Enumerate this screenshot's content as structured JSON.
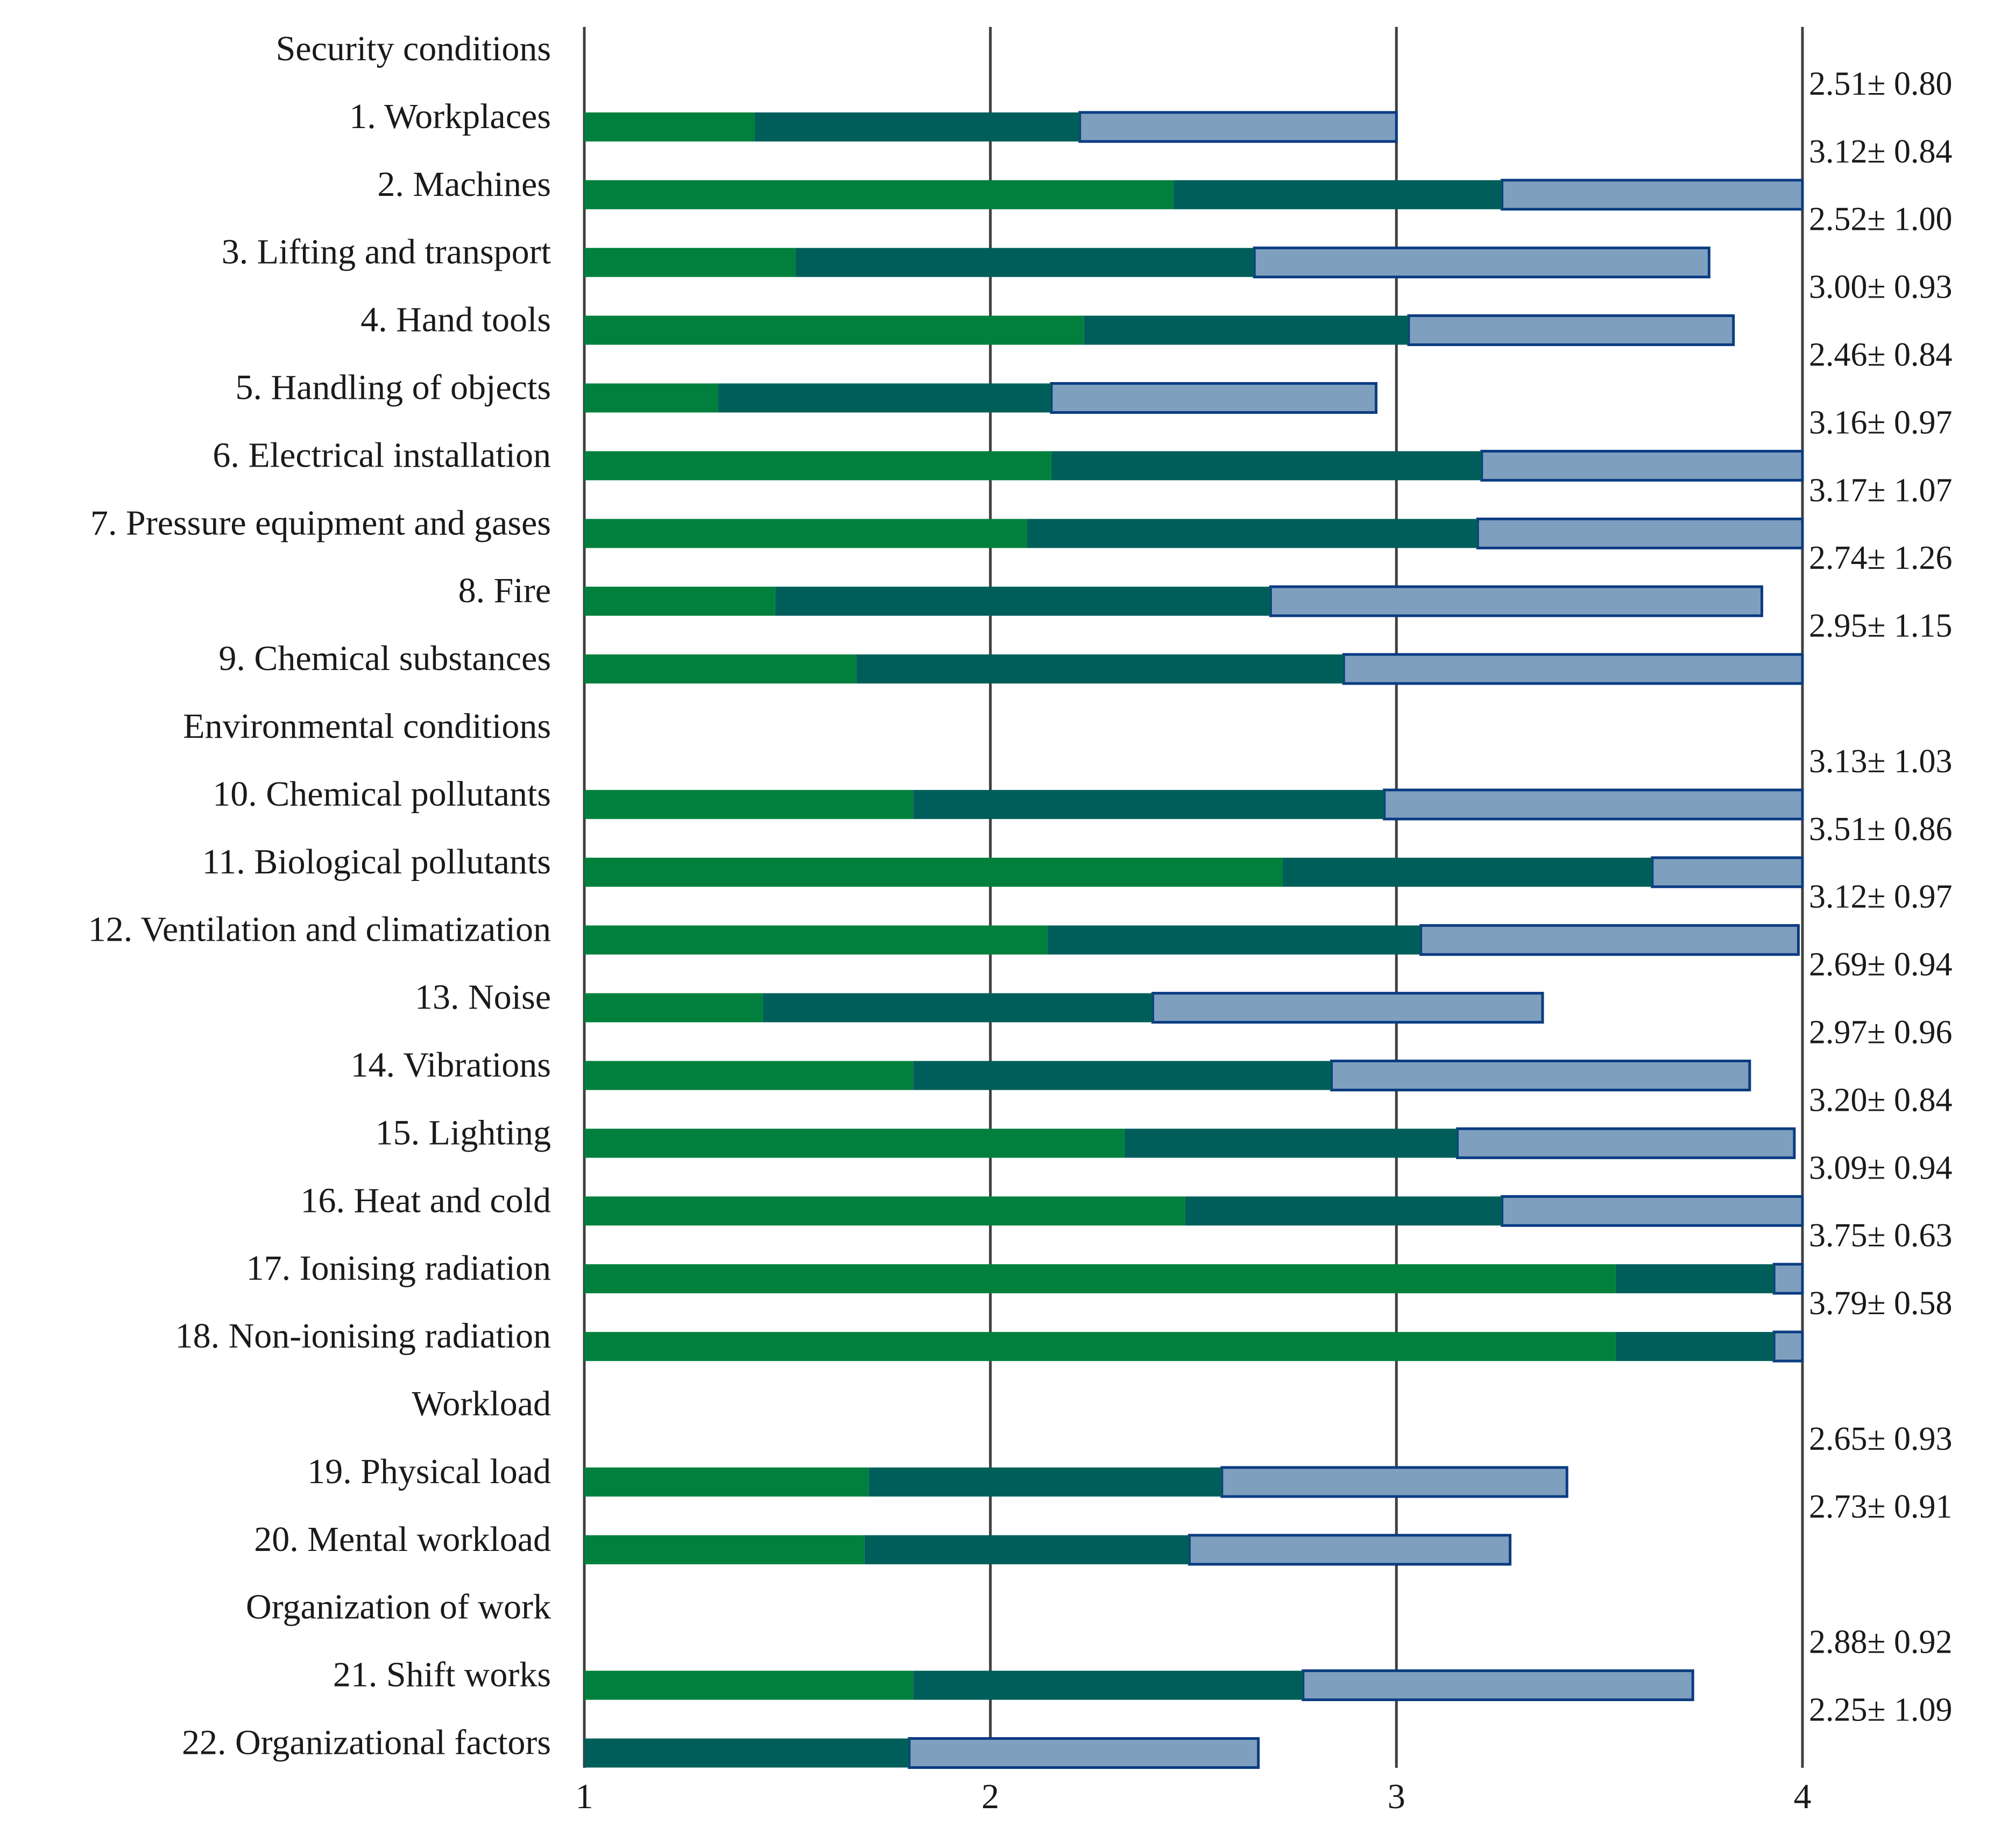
{
  "chart_data": {
    "type": "bar",
    "orientation": "horizontal",
    "stacked": true,
    "title": "",
    "xlabel": "",
    "ylabel": "",
    "xlim": [
      1,
      4
    ],
    "x_ticks": [
      "1",
      "2",
      "3",
      "4"
    ],
    "grid": true,
    "legend": "none",
    "colors": {
      "segment1": "#00803c",
      "segment2": "#005e5a",
      "segment3": "#7f9fbf",
      "segment3_border": "#0b3c82",
      "grid": "#404040"
    },
    "rows": [
      {
        "label": "Security conditions",
        "header": true
      },
      {
        "label": "1. Workplaces",
        "value_label": "2.51± 0.80",
        "segments": [
          1.42,
          2.22,
          3.0
        ]
      },
      {
        "label": "2. Machines",
        "value_label": "3.12± 0.84",
        "segments": [
          2.45,
          3.26,
          4.0
        ]
      },
      {
        "label": "3. Lifting and transport",
        "value_label": "2.52± 1.00",
        "segments": [
          1.52,
          2.65,
          3.77
        ]
      },
      {
        "label": "4. Hand tools",
        "value_label": "3.00± 0.93",
        "segments": [
          2.23,
          3.03,
          3.83
        ]
      },
      {
        "label": "5. Handling of objects",
        "value_label": "2.46± 0.84",
        "segments": [
          1.33,
          2.15,
          2.95
        ]
      },
      {
        "label": "6. Electrical installation",
        "value_label": "3.16± 0.97",
        "segments": [
          2.15,
          3.21,
          4.0
        ]
      },
      {
        "label": "7. Pressure equipment and gases",
        "value_label": "3.17± 1.07",
        "segments": [
          2.09,
          3.2,
          4.0
        ]
      },
      {
        "label": "8. Fire",
        "value_label": "2.74± 1.26",
        "segments": [
          1.47,
          2.69,
          3.9
        ]
      },
      {
        "label": "9. Chemical substances",
        "value_label": "2.95± 1.15",
        "segments": [
          1.67,
          2.87,
          4.0
        ]
      },
      {
        "label": "Environmental conditions",
        "header": true
      },
      {
        "label": "10. Chemical pollutants",
        "value_label": "3.13± 1.03",
        "segments": [
          1.81,
          2.97,
          4.0
        ]
      },
      {
        "label": "11. Biological pollutants",
        "value_label": "3.51± 0.86",
        "segments": [
          2.72,
          3.63,
          4.0
        ]
      },
      {
        "label": "12. Ventilation and climatization",
        "value_label": "3.12± 0.97",
        "segments": [
          2.14,
          3.06,
          3.99
        ]
      },
      {
        "label": "13. Noise",
        "value_label": "2.69± 0.94",
        "segments": [
          1.44,
          2.4,
          3.36
        ]
      },
      {
        "label": "14. Vibrations",
        "value_label": "2.97± 0.96",
        "segments": [
          1.81,
          2.84,
          3.87
        ]
      },
      {
        "label": "15. Lighting",
        "value_label": "3.20± 0.84",
        "segments": [
          2.33,
          3.15,
          3.98
        ]
      },
      {
        "label": "16. Heat and cold",
        "value_label": "3.09± 0.94",
        "segments": [
          2.48,
          3.26,
          4.0
        ]
      },
      {
        "label": "17. Ionising radiation",
        "value_label": "3.75± 0.63",
        "segments": [
          3.54,
          3.93,
          4.0
        ]
      },
      {
        "label": "18. Non-ionising radiation",
        "value_label": "3.79± 0.58",
        "segments": [
          3.54,
          3.93,
          4.0
        ]
      },
      {
        "label": "Workload",
        "header": true
      },
      {
        "label": "19. Physical load",
        "value_label": "2.65± 0.93",
        "segments": [
          1.7,
          2.57,
          3.42
        ]
      },
      {
        "label": "20. Mental workload",
        "value_label": "2.73± 0.91",
        "segments": [
          1.69,
          2.49,
          3.28
        ]
      },
      {
        "label": "Organization of work",
        "header": true
      },
      {
        "label": "21. Shift works",
        "value_label": "2.88± 0.92",
        "segments": [
          1.81,
          2.77,
          3.73
        ]
      },
      {
        "label": "22. Organizational factors",
        "value_label": "2.25± 1.09",
        "segments": [
          1.0,
          1.8,
          2.66
        ]
      }
    ]
  }
}
